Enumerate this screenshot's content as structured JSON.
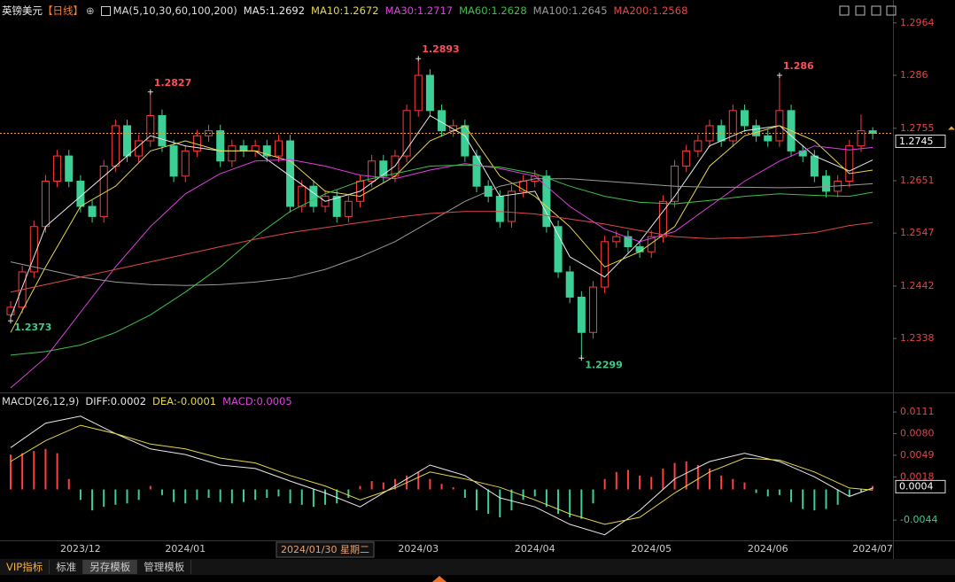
{
  "symbol": "英镑美元",
  "period": "【日线】",
  "cursor_date": "2024/01/30 星期二",
  "toolbar": [
    "VIP指标",
    "标准",
    "另存模板",
    "管理模板"
  ],
  "chart_data": [
    {
      "type": "candlestick",
      "indicator": "MA(5,10,30,60,100,200)",
      "categories": [
        null,
        null,
        null,
        null,
        null,
        null,
        "2023/12",
        null,
        null,
        null,
        null,
        null,
        null,
        null,
        null,
        "2024/01",
        null,
        null,
        null,
        null,
        null,
        null,
        null,
        null,
        null,
        null,
        null,
        null,
        null,
        null,
        null,
        null,
        null,
        null,
        null,
        "2024/03",
        null,
        null,
        null,
        null,
        null,
        null,
        null,
        null,
        null,
        "2024/04",
        null,
        null,
        null,
        null,
        null,
        null,
        null,
        null,
        null,
        "2024/05",
        null,
        null,
        null,
        null,
        null,
        null,
        null,
        null,
        null,
        "2024/06",
        null,
        null,
        null,
        null,
        null,
        null,
        null,
        null,
        "2024/07"
      ],
      "open": [
        1.2385,
        1.24,
        1.247,
        1.256,
        1.265,
        1.27,
        1.265,
        1.26,
        1.258,
        1.268,
        1.276,
        1.27,
        1.273,
        1.278,
        1.272,
        1.266,
        1.271,
        1.274,
        1.275,
        1.269,
        1.272,
        1.271,
        1.272,
        1.27,
        1.273,
        1.26,
        1.264,
        1.26,
        1.262,
        1.258,
        1.261,
        1.265,
        1.269,
        1.266,
        1.27,
        1.279,
        1.286,
        1.279,
        1.275,
        1.276,
        1.27,
        1.264,
        1.262,
        1.257,
        1.263,
        1.265,
        1.266,
        1.256,
        1.247,
        1.242,
        1.235,
        1.244,
        1.253,
        1.254,
        1.252,
        1.251,
        1.254,
        1.261,
        1.268,
        1.271,
        1.273,
        1.276,
        1.273,
        1.279,
        1.276,
        1.274,
        1.273,
        1.279,
        1.271,
        1.27,
        1.266,
        1.263,
        1.265,
        1.272,
        1.275
      ],
      "high": [
        1.2412,
        1.2482,
        1.2572,
        1.2662,
        1.2712,
        1.2712,
        1.2662,
        1.2612,
        1.2692,
        1.2772,
        1.2772,
        1.2742,
        1.2827,
        1.2792,
        1.2732,
        1.2722,
        1.2752,
        1.2762,
        1.2762,
        1.2732,
        1.2732,
        1.2732,
        1.2732,
        1.2742,
        1.2742,
        1.2652,
        1.2652,
        1.2632,
        1.2632,
        1.2622,
        1.2662,
        1.2702,
        1.2702,
        1.2712,
        1.2802,
        1.2893,
        1.2872,
        1.2802,
        1.2772,
        1.2772,
        1.2712,
        1.2652,
        1.2632,
        1.2642,
        1.2662,
        1.2672,
        1.2672,
        1.2572,
        1.2482,
        1.2432,
        1.2452,
        1.2542,
        1.2552,
        1.2552,
        1.2532,
        1.2552,
        1.2622,
        1.2692,
        1.2722,
        1.2742,
        1.2772,
        1.2772,
        1.2802,
        1.2802,
        1.2772,
        1.2752,
        1.286,
        1.2802,
        1.2722,
        1.2712,
        1.2672,
        1.2662,
        1.2732,
        1.2782,
        1.2757
      ],
      "low": [
        1.2373,
        1.2388,
        1.2458,
        1.2548,
        1.2638,
        1.2638,
        1.2588,
        1.2568,
        1.2568,
        1.2668,
        1.2688,
        1.2688,
        1.2718,
        1.2708,
        1.2648,
        1.2648,
        1.2698,
        1.2728,
        1.2678,
        1.2678,
        1.2698,
        1.2698,
        1.2688,
        1.2688,
        1.2588,
        1.2588,
        1.2588,
        1.2588,
        1.2568,
        1.2568,
        1.2598,
        1.2638,
        1.2648,
        1.2648,
        1.2688,
        1.2778,
        1.2778,
        1.2738,
        1.2738,
        1.2688,
        1.2628,
        1.2608,
        1.2558,
        1.2558,
        1.2618,
        1.2638,
        1.2548,
        1.2458,
        1.2408,
        1.2299,
        1.2338,
        1.2428,
        1.2518,
        1.2508,
        1.2498,
        1.2498,
        1.2528,
        1.2598,
        1.2668,
        1.2698,
        1.2718,
        1.2718,
        1.2718,
        1.2748,
        1.2728,
        1.2718,
        1.2718,
        1.2698,
        1.2688,
        1.2648,
        1.2618,
        1.2618,
        1.2638,
        1.2708,
        1.2733
      ],
      "close": [
        1.24,
        1.247,
        1.256,
        1.265,
        1.27,
        1.265,
        1.26,
        1.258,
        1.268,
        1.276,
        1.27,
        1.273,
        1.278,
        1.272,
        1.266,
        1.271,
        1.274,
        1.275,
        1.269,
        1.272,
        1.271,
        1.272,
        1.27,
        1.273,
        1.26,
        1.264,
        1.26,
        1.262,
        1.258,
        1.261,
        1.265,
        1.269,
        1.266,
        1.27,
        1.279,
        1.286,
        1.279,
        1.275,
        1.276,
        1.27,
        1.264,
        1.262,
        1.257,
        1.263,
        1.265,
        1.266,
        1.256,
        1.247,
        1.242,
        1.235,
        1.244,
        1.253,
        1.254,
        1.252,
        1.251,
        1.254,
        1.261,
        1.268,
        1.271,
        1.273,
        1.276,
        1.273,
        1.279,
        1.276,
        1.274,
        1.273,
        1.279,
        1.271,
        1.27,
        1.266,
        1.263,
        1.265,
        1.272,
        1.275,
        1.2745
      ],
      "up_color": "#ff3b3b",
      "down_color": "#3ccf96",
      "high_label_color": "#ff4d5a",
      "low_label_color": "#3fc98a",
      "last_price": 1.2745,
      "series": [
        {
          "name": "MA5:1.2692",
          "color": "#e8e8e8",
          "x": [
            0,
            3,
            6,
            9,
            12,
            15,
            18,
            21,
            24,
            27,
            30,
            33,
            36,
            39,
            42,
            45,
            48,
            51,
            54,
            57,
            60,
            63,
            66,
            69,
            72,
            74
          ],
          "values": [
            1.238,
            1.256,
            1.262,
            1.268,
            1.274,
            1.272,
            1.271,
            1.271,
            1.266,
            1.261,
            1.263,
            1.268,
            1.278,
            1.274,
            1.262,
            1.263,
            1.25,
            1.246,
            1.253,
            1.262,
            1.272,
            1.275,
            1.276,
            1.27,
            1.267,
            1.2692
          ]
        },
        {
          "name": "MA10:1.2672",
          "color": "#e6d64a",
          "x": [
            0,
            3,
            6,
            9,
            12,
            15,
            18,
            21,
            24,
            27,
            30,
            33,
            36,
            39,
            42,
            45,
            48,
            51,
            54,
            57,
            60,
            63,
            66,
            69,
            72,
            74
          ],
          "values": [
            1.235,
            1.248,
            1.26,
            1.264,
            1.271,
            1.273,
            1.271,
            1.271,
            1.269,
            1.263,
            1.262,
            1.266,
            1.273,
            1.276,
            1.266,
            1.262,
            1.256,
            1.248,
            1.251,
            1.256,
            1.268,
            1.274,
            1.276,
            1.273,
            1.2665,
            1.2672
          ]
        },
        {
          "name": "MA30:1.2717",
          "color": "#e040e0",
          "x": [
            0,
            3,
            6,
            9,
            12,
            15,
            18,
            21,
            24,
            27,
            30,
            33,
            36,
            39,
            42,
            45,
            48,
            51,
            54,
            57,
            60,
            63,
            66,
            69,
            72,
            74
          ],
          "values": [
            1.224,
            1.23,
            1.239,
            1.248,
            1.256,
            1.2625,
            1.2665,
            1.269,
            1.2693,
            1.268,
            1.2662,
            1.2655,
            1.2672,
            1.2685,
            1.2675,
            1.266,
            1.26,
            1.2555,
            1.253,
            1.255,
            1.26,
            1.265,
            1.269,
            1.272,
            1.2712,
            1.2717
          ]
        },
        {
          "name": "MA60:1.2628",
          "color": "#3fbf4a",
          "x": [
            0,
            3,
            6,
            9,
            12,
            15,
            18,
            21,
            24,
            27,
            30,
            33,
            36,
            39,
            42,
            45,
            48,
            51,
            54,
            57,
            60,
            63,
            66,
            69,
            72,
            74
          ],
          "values": [
            1.2305,
            1.2312,
            1.2325,
            1.235,
            1.2385,
            1.243,
            1.248,
            1.254,
            1.259,
            1.2625,
            1.265,
            1.2665,
            1.268,
            1.2682,
            1.2678,
            1.2665,
            1.264,
            1.262,
            1.2608,
            1.2605,
            1.2612,
            1.262,
            1.2625,
            1.2622,
            1.262,
            1.2628
          ]
        },
        {
          "name": "MA100:1.2645",
          "color": "#9a9a9a",
          "x": [
            0,
            3,
            6,
            9,
            12,
            15,
            18,
            21,
            24,
            27,
            30,
            33,
            36,
            39,
            42,
            45,
            48,
            51,
            54,
            57,
            60,
            63,
            66,
            69,
            72,
            74
          ],
          "values": [
            1.249,
            1.2475,
            1.246,
            1.245,
            1.2445,
            1.2443,
            1.2445,
            1.245,
            1.2458,
            1.2475,
            1.25,
            1.253,
            1.257,
            1.261,
            1.264,
            1.2655,
            1.2655,
            1.265,
            1.2645,
            1.264,
            1.2638,
            1.2638,
            1.2637,
            1.2638,
            1.2642,
            1.2645
          ]
        },
        {
          "name": "MA200:1.2568",
          "color": "#e04848",
          "x": [
            0,
            3,
            6,
            9,
            12,
            15,
            18,
            21,
            24,
            27,
            30,
            33,
            36,
            39,
            42,
            45,
            48,
            51,
            54,
            57,
            60,
            63,
            66,
            69,
            72,
            74
          ],
          "values": [
            1.243,
            1.2445,
            1.246,
            1.2475,
            1.249,
            1.2505,
            1.252,
            1.2535,
            1.2548,
            1.2558,
            1.2568,
            1.2578,
            1.2586,
            1.259,
            1.259,
            1.2585,
            1.2575,
            1.2565,
            1.2552,
            1.254,
            1.2536,
            1.2538,
            1.2542,
            1.2548,
            1.2562,
            1.2568
          ]
        }
      ],
      "ylim": [
        1.2231,
        1.2983
      ],
      "yticks": [
        1.2964,
        1.286,
        1.2755,
        1.2651,
        1.2547,
        1.2442,
        1.2338
      ]
    },
    {
      "type": "macd",
      "indicator": "MACD(26,12,9)",
      "series": [
        {
          "name": "DIFF:0.0002",
          "color": "#e8e8e8",
          "x": [
            0,
            3,
            6,
            9,
            12,
            15,
            18,
            21,
            24,
            27,
            30,
            33,
            36,
            39,
            42,
            45,
            48,
            51,
            54,
            57,
            60,
            63,
            66,
            69,
            72,
            74
          ],
          "values": [
            0.006,
            0.0095,
            0.0105,
            0.008,
            0.0058,
            0.005,
            0.0035,
            0.003,
            0.0012,
            -0.0005,
            -0.0025,
            0.0005,
            0.0035,
            0.002,
            -0.0012,
            -0.0025,
            -0.005,
            -0.0065,
            -0.003,
            0.0015,
            0.004,
            0.0052,
            0.004,
            0.0018,
            -0.001,
            0.0002
          ]
        },
        {
          "name": "DEA:-0.0001",
          "color": "#e6d64a",
          "x": [
            0,
            3,
            6,
            9,
            12,
            15,
            18,
            21,
            24,
            27,
            30,
            33,
            36,
            39,
            42,
            45,
            48,
            51,
            54,
            57,
            60,
            63,
            66,
            69,
            72,
            74
          ],
          "values": [
            0.004,
            0.007,
            0.0092,
            0.008,
            0.0065,
            0.0058,
            0.0045,
            0.0038,
            0.002,
            0.0005,
            -0.0015,
            0.0002,
            0.0025,
            0.0015,
            0.0003,
            -0.0015,
            -0.0035,
            -0.005,
            -0.004,
            -0.0005,
            0.0025,
            0.0045,
            0.0042,
            0.0025,
            0.0002,
            -0.0001
          ]
        }
      ],
      "histogram": {
        "name": "MACD:0.0005",
        "color": "#e040e0",
        "up_color": "#ff4040",
        "down_color": "#3ccf96",
        "values": [
          0.005,
          0.0052,
          0.0055,
          0.0058,
          0.0052,
          0.0015,
          -0.0015,
          -0.003,
          -0.0025,
          -0.0022,
          -0.002,
          -0.0015,
          0.0005,
          -0.0008,
          -0.0018,
          -0.002,
          -0.0015,
          -0.0012,
          -0.0018,
          -0.002,
          -0.0018,
          -0.0015,
          -0.0012,
          -0.001,
          -0.002,
          -0.0022,
          -0.0025,
          -0.0022,
          -0.002,
          -0.0012,
          0.0005,
          0.0012,
          0.001,
          0.0015,
          0.002,
          0.0025,
          0.0015,
          0.0008,
          0.0003,
          -0.0012,
          -0.003,
          -0.0035,
          -0.004,
          -0.003,
          -0.0015,
          -0.001,
          -0.0025,
          -0.0035,
          -0.004,
          -0.0042,
          -0.002,
          0.0015,
          0.0025,
          0.0028,
          0.002,
          0.0018,
          0.003,
          0.0038,
          0.004,
          0.0035,
          0.003,
          0.002,
          0.0015,
          0.001,
          -0.0005,
          -0.001,
          -0.0008,
          -0.0018,
          -0.0028,
          -0.003,
          -0.0028,
          -0.0022,
          -0.001,
          -0.0003,
          0.0005
        ]
      },
      "axis_marker": 0.0004,
      "ylim": [
        -0.0073,
        0.0134
      ],
      "yticks": [
        0.0111,
        {
          "value": 0.008,
          "label": "0.0080"
        },
        0.0049,
        0.0018,
        -0.0044
      ]
    }
  ]
}
